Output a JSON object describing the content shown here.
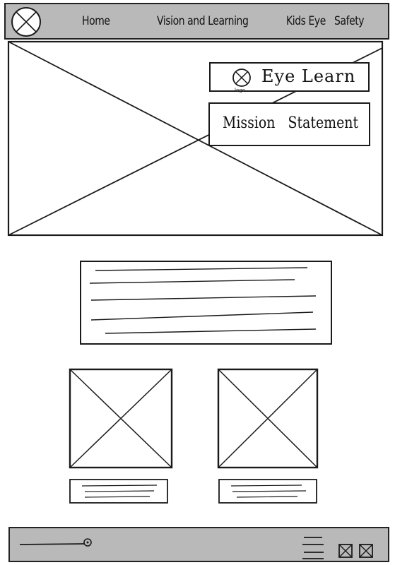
{
  "nav": {
    "items": [
      {
        "label": "Home"
      },
      {
        "label": "Vision and Learning"
      },
      {
        "label": "Kids Eye"
      },
      {
        "label": "Safety"
      }
    ]
  },
  "hero": {
    "brand_name": "Eye Learn",
    "logo_caption": "logo",
    "mission_statement": "Mission Statement"
  },
  "icons": {
    "logo": "logo-placeholder-icon",
    "hero_image": "image-placeholder-icon",
    "menu": "hamburger-menu-icon",
    "social": [
      "social-box-icon",
      "social-box-icon"
    ]
  },
  "colors": {
    "bar_fill": "#b9b9b9",
    "stroke": "#1a1a1a",
    "background": "#ffffff"
  }
}
